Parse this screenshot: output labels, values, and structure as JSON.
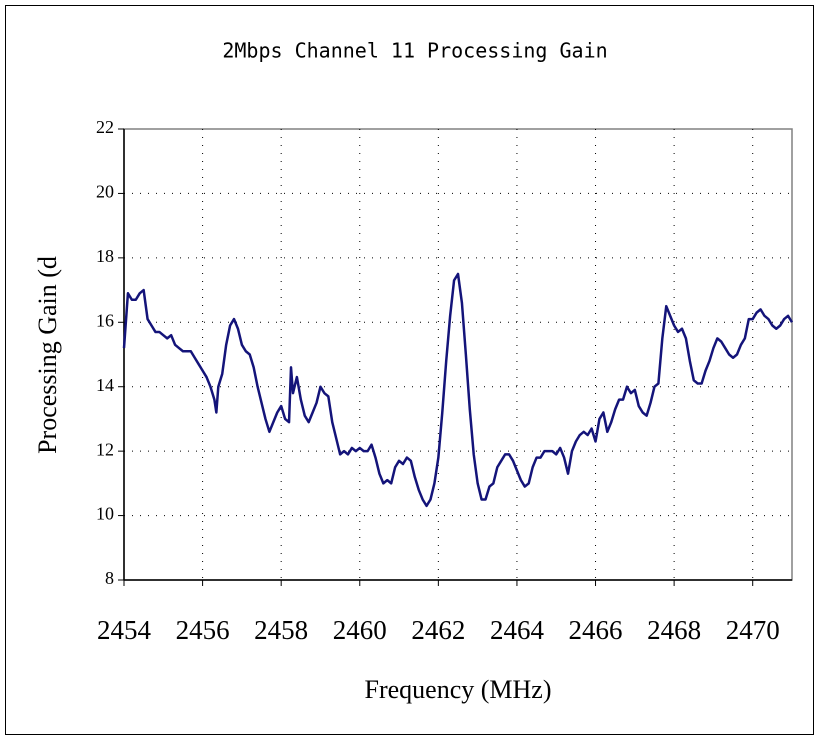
{
  "chart_data": {
    "type": "line",
    "title": "2Mbps Channel 11 Processing Gain",
    "x_label": "Frequency (MHz)",
    "y_label": "Processing Gain (d",
    "x": [
      2454.0,
      2454.1,
      2454.2,
      2454.3,
      2454.4,
      2454.5,
      2454.6,
      2454.7,
      2454.8,
      2454.9,
      2455.0,
      2455.1,
      2455.2,
      2455.3,
      2455.4,
      2455.5,
      2455.6,
      2455.7,
      2455.8,
      2455.9,
      2456.0,
      2456.1,
      2456.2,
      2456.3,
      2456.35,
      2456.4,
      2456.5,
      2456.6,
      2456.7,
      2456.8,
      2456.9,
      2457.0,
      2457.1,
      2457.2,
      2457.3,
      2457.4,
      2457.5,
      2457.6,
      2457.7,
      2457.8,
      2457.9,
      2458.0,
      2458.1,
      2458.2,
      2458.25,
      2458.3,
      2458.4,
      2458.5,
      2458.6,
      2458.7,
      2458.8,
      2458.9,
      2459.0,
      2459.1,
      2459.2,
      2459.3,
      2459.4,
      2459.5,
      2459.6,
      2459.7,
      2459.8,
      2459.9,
      2460.0,
      2460.1,
      2460.2,
      2460.3,
      2460.4,
      2460.5,
      2460.6,
      2460.7,
      2460.8,
      2460.9,
      2461.0,
      2461.1,
      2461.2,
      2461.3,
      2461.4,
      2461.5,
      2461.6,
      2461.7,
      2461.8,
      2461.9,
      2462.0,
      2462.1,
      2462.2,
      2462.3,
      2462.4,
      2462.5,
      2462.6,
      2462.7,
      2462.8,
      2462.9,
      2463.0,
      2463.1,
      2463.2,
      2463.3,
      2463.4,
      2463.5,
      2463.6,
      2463.7,
      2463.8,
      2463.9,
      2464.0,
      2464.1,
      2464.2,
      2464.3,
      2464.4,
      2464.5,
      2464.6,
      2464.7,
      2464.8,
      2464.9,
      2465.0,
      2465.1,
      2465.2,
      2465.3,
      2465.4,
      2465.5,
      2465.6,
      2465.7,
      2465.8,
      2465.9,
      2466.0,
      2466.1,
      2466.2,
      2466.3,
      2466.4,
      2466.5,
      2466.6,
      2466.7,
      2466.8,
      2466.9,
      2467.0,
      2467.1,
      2467.2,
      2467.3,
      2467.4,
      2467.5,
      2467.6,
      2467.7,
      2467.8,
      2467.9,
      2468.0,
      2468.1,
      2468.2,
      2468.3,
      2468.4,
      2468.5,
      2468.6,
      2468.7,
      2468.8,
      2468.9,
      2469.0,
      2469.1,
      2469.2,
      2469.3,
      2469.4,
      2469.5,
      2469.6,
      2469.7,
      2469.8,
      2469.9,
      2470.0,
      2470.1,
      2470.2,
      2470.3,
      2470.4,
      2470.5,
      2470.6,
      2470.7,
      2470.8,
      2470.9,
      2471.0
    ],
    "series": [
      {
        "color": "#14147a",
        "values": [
          15.2,
          16.9,
          16.7,
          16.7,
          16.9,
          17.0,
          16.1,
          15.9,
          15.7,
          15.7,
          15.6,
          15.5,
          15.6,
          15.3,
          15.2,
          15.1,
          15.1,
          15.1,
          14.9,
          14.7,
          14.5,
          14.3,
          14.0,
          13.6,
          13.2,
          14.0,
          14.4,
          15.3,
          15.9,
          16.1,
          15.8,
          15.3,
          15.1,
          15.0,
          14.6,
          14.0,
          13.5,
          13.0,
          12.6,
          12.9,
          13.2,
          13.4,
          13.0,
          12.9,
          14.6,
          13.8,
          14.3,
          13.6,
          13.1,
          12.9,
          13.2,
          13.5,
          14.0,
          13.8,
          13.7,
          12.9,
          12.4,
          11.9,
          12.0,
          11.9,
          12.1,
          12.0,
          12.1,
          12.0,
          12.0,
          12.2,
          11.8,
          11.3,
          11.0,
          11.1,
          11.0,
          11.5,
          11.7,
          11.6,
          11.8,
          11.7,
          11.2,
          10.8,
          10.5,
          10.3,
          10.5,
          11.0,
          11.8,
          13.2,
          14.8,
          16.2,
          17.3,
          17.5,
          16.6,
          15.0,
          13.3,
          11.9,
          11.0,
          10.5,
          10.5,
          10.9,
          11.0,
          11.5,
          11.7,
          11.9,
          11.9,
          11.7,
          11.4,
          11.1,
          10.9,
          11.0,
          11.5,
          11.8,
          11.8,
          12.0,
          12.0,
          12.0,
          11.9,
          12.1,
          11.8,
          11.3,
          12.0,
          12.3,
          12.5,
          12.6,
          12.5,
          12.7,
          12.3,
          13.0,
          13.2,
          12.6,
          12.9,
          13.3,
          13.6,
          13.6,
          14.0,
          13.8,
          13.9,
          13.4,
          13.2,
          13.1,
          13.5,
          14.0,
          14.1,
          15.5,
          16.5,
          16.2,
          15.9,
          15.7,
          15.8,
          15.5,
          14.8,
          14.2,
          14.1,
          14.1,
          14.5,
          14.8,
          15.2,
          15.5,
          15.4,
          15.2,
          15.0,
          14.9,
          15.0,
          15.3,
          15.5,
          16.1,
          16.1,
          16.3,
          16.4,
          16.2,
          16.1,
          15.9,
          15.8,
          15.9,
          16.1,
          16.2,
          16.0
        ]
      }
    ],
    "xlim": [
      2454,
      2471
    ],
    "xticks": [
      2454,
      2456,
      2458,
      2460,
      2462,
      2464,
      2466,
      2468,
      2470
    ],
    "ylim": [
      8,
      22
    ],
    "yticks": [
      8,
      10,
      12,
      14,
      16,
      18,
      20,
      22
    ],
    "grid": true
  }
}
